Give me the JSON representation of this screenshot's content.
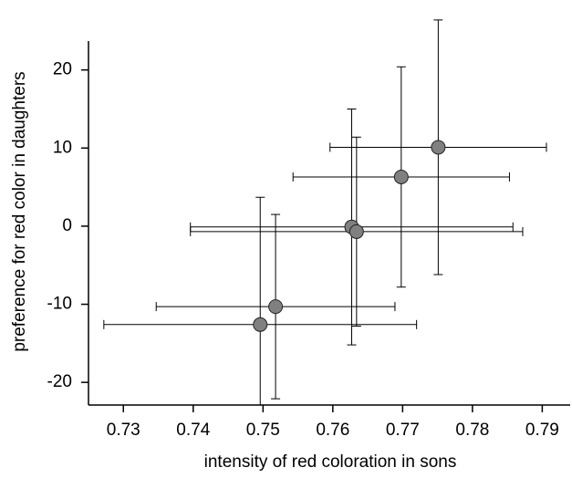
{
  "chart_data": {
    "type": "scatter",
    "x_label": "intensity of red coloration in sons",
    "y_label": "preference for red color in daughters",
    "x": [
      0.7496,
      0.7518,
      0.7627,
      0.7634,
      0.7698,
      0.7751
    ],
    "values": [
      -12.6,
      -10.3,
      -0.1,
      -0.7,
      6.3,
      10.1
    ],
    "xerr": [
      0.0224,
      0.0171,
      0.0231,
      0.0238,
      0.0155,
      0.0155
    ],
    "yerr": [
      16.3,
      11.8,
      15.1,
      12.1,
      14.1,
      16.3
    ],
    "color": "#808080",
    "xlim": [
      0.725,
      0.794
    ],
    "xticks": [
      0.73,
      0.74,
      0.75,
      0.76,
      0.77,
      0.78,
      0.79
    ],
    "ylim": [
      -22.9,
      23.7
    ],
    "yticks": [
      -20,
      -10,
      0,
      10,
      20
    ]
  }
}
